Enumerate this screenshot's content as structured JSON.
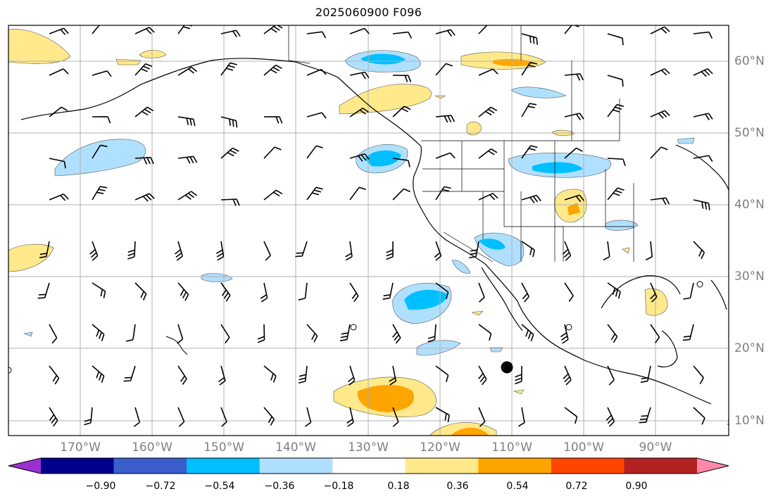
{
  "title": "2025060900 F096",
  "longitude_labels": [
    "170°W",
    "160°W",
    "150°W",
    "140°W",
    "130°W",
    "120°W",
    "110°W",
    "100°W",
    "90°W"
  ],
  "latitude_labels": [
    "60°N",
    "50°N",
    "40°N",
    "30°N",
    "20°N",
    "10°N"
  ],
  "colorbar": {
    "tick_labels": [
      "−0.90",
      "−0.72",
      "−0.54",
      "−0.36",
      "−0.18",
      "0.18",
      "0.36",
      "0.54",
      "0.72",
      "0.90"
    ],
    "colors": [
      "#9b30d0",
      "#00008b",
      "#3a5fcd",
      "#00bfff",
      "#b0e0ff",
      "#ffffff",
      "#ffe98a",
      "#ffa500",
      "#ff4500",
      "#b22222",
      "#ff88aa"
    ]
  },
  "map": {
    "region": "North Pacific and North America",
    "extent": {
      "lon": [
        -180,
        -80
      ],
      "lat": [
        8,
        65
      ]
    },
    "features": [
      "coastlines",
      "country borders",
      "US state borders",
      "lat/lon grid",
      "wind barbs",
      "filled contours"
    ]
  }
}
